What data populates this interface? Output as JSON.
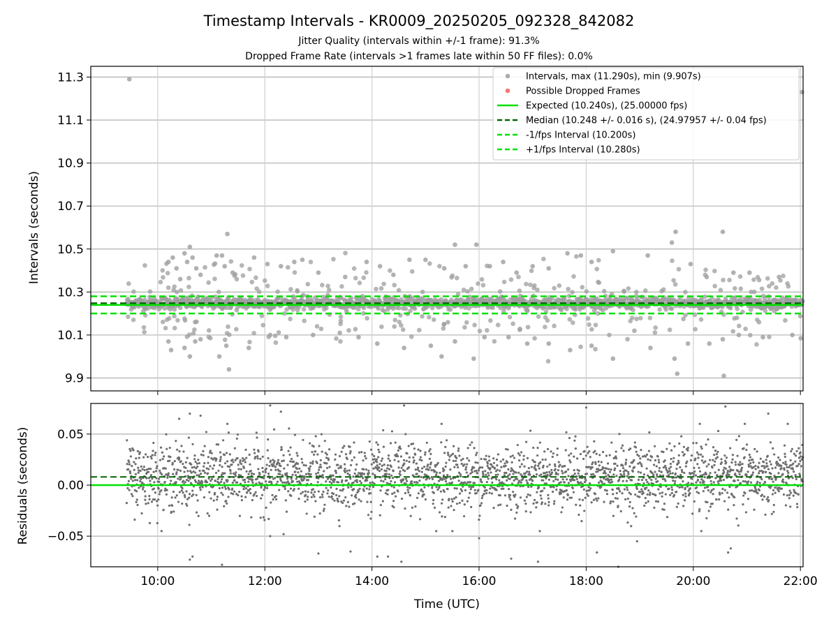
{
  "chart_data": [
    {
      "type": "scatter",
      "title": "Timestamp Intervals - KR0009_20250205_092328_842082",
      "subtitle_lines": [
        "Jitter Quality (intervals within +/-1 frame): 91.3%",
        "Dropped Frame Rate (intervals >1 frames late within 50 FF files): 0.0%"
      ],
      "ylabel": "Intervals (seconds)",
      "xlim_hours": [
        8.75,
        22.05
      ],
      "ylim": [
        9.84,
        11.35
      ],
      "y_ticks": [
        9.9,
        10.1,
        10.3,
        10.5,
        10.7,
        10.9,
        11.1,
        11.3
      ],
      "y_tick_labels": [
        "9.9",
        "10.1",
        "10.3",
        "10.5",
        "10.7",
        "10.9",
        "11.1",
        "11.3"
      ],
      "grid": true,
      "legend_position": "top-right",
      "legend": [
        {
          "label": "Intervals, max (11.290s), min (9.907s)",
          "kind": "marker",
          "color": "#9e9e9e"
        },
        {
          "label": "Possible Dropped Frames",
          "kind": "marker",
          "color": "#f06060"
        },
        {
          "label": "Expected (10.240s), (25.00000 fps)",
          "kind": "line",
          "color": "#00e000",
          "dash": "solid"
        },
        {
          "label": "Median (10.248 +/- 0.016 s), (24.97957 +/- 0.04 fps)",
          "kind": "line",
          "color": "#006400",
          "dash": "dashed"
        },
        {
          "label": "-1/fps Interval (10.200s)",
          "kind": "line",
          "color": "#00e000",
          "dash": "dashed"
        },
        {
          "label": "+1/fps Interval (10.280s)",
          "kind": "line",
          "color": "#00e000",
          "dash": "dashed"
        }
      ],
      "reference_lines": {
        "expected": 10.24,
        "median": 10.248,
        "minus_one_fps": 10.2,
        "plus_one_fps": 10.28
      },
      "series": [
        {
          "name": "Intervals, max (11.290s), min (9.907s)",
          "core_band": [
            10.2,
            10.29
          ],
          "x_range": [
            9.42,
            22.05
          ],
          "outliers": [
            [
              9.47,
              11.29
            ],
            [
              22.03,
              11.23
            ],
            [
              10.2,
              10.44
            ],
            [
              10.28,
              10.46
            ],
            [
              10.35,
              10.41
            ],
            [
              10.42,
              10.36
            ],
            [
              10.5,
              10.48
            ],
            [
              10.55,
              10.44
            ],
            [
              10.6,
              10.51
            ],
            [
              10.65,
              10.46
            ],
            [
              10.72,
              10.41
            ],
            [
              10.8,
              10.38
            ],
            [
              11.1,
              10.47
            ],
            [
              11.2,
              10.47
            ],
            [
              11.3,
              10.57
            ],
            [
              11.25,
              10.42
            ],
            [
              11.4,
              10.39
            ],
            [
              11.8,
              10.46
            ],
            [
              12.05,
              10.43
            ],
            [
              12.3,
              10.42
            ],
            [
              12.55,
              10.44
            ],
            [
              12.7,
              10.45
            ],
            [
              13.0,
              10.39
            ],
            [
              13.5,
              10.37
            ],
            [
              13.9,
              10.44
            ],
            [
              14.15,
              10.42
            ],
            [
              14.4,
              10.38
            ],
            [
              14.7,
              10.45
            ],
            [
              15.0,
              10.45
            ],
            [
              15.35,
              10.41
            ],
            [
              15.55,
              10.52
            ],
            [
              15.75,
              10.42
            ],
            [
              15.95,
              10.52
            ],
            [
              16.2,
              10.42
            ],
            [
              16.45,
              10.44
            ],
            [
              16.7,
              10.39
            ],
            [
              17.0,
              10.42
            ],
            [
              17.3,
              10.41
            ],
            [
              17.65,
              10.48
            ],
            [
              17.9,
              10.47
            ],
            [
              18.1,
              10.44
            ],
            [
              18.5,
              10.49
            ],
            [
              19.15,
              10.47
            ],
            [
              19.6,
              10.53
            ],
            [
              19.67,
              10.58
            ],
            [
              19.95,
              10.43
            ],
            [
              20.25,
              10.37
            ],
            [
              20.55,
              10.58
            ],
            [
              20.75,
              10.39
            ],
            [
              21.05,
              10.39
            ],
            [
              21.6,
              10.37
            ],
            [
              10.2,
              10.07
            ],
            [
              10.25,
              10.03
            ],
            [
              10.5,
              10.04
            ],
            [
              10.6,
              10.0
            ],
            [
              10.7,
              10.07
            ],
            [
              10.8,
              10.08
            ],
            [
              11.15,
              10.0
            ],
            [
              11.28,
              10.05
            ],
            [
              11.33,
              9.94
            ],
            [
              11.7,
              10.04
            ],
            [
              12.1,
              10.1
            ],
            [
              12.4,
              10.09
            ],
            [
              12.9,
              10.1
            ],
            [
              13.4,
              10.11
            ],
            [
              13.75,
              10.09
            ],
            [
              14.1,
              10.06
            ],
            [
              14.6,
              10.04
            ],
            [
              15.1,
              10.05
            ],
            [
              15.3,
              10.0
            ],
            [
              15.55,
              10.07
            ],
            [
              15.9,
              9.99
            ],
            [
              16.1,
              10.09
            ],
            [
              16.55,
              10.09
            ],
            [
              16.9,
              10.06
            ],
            [
              17.3,
              10.06
            ],
            [
              17.7,
              10.03
            ],
            [
              18.1,
              10.05
            ],
            [
              18.5,
              9.99
            ],
            [
              18.9,
              10.12
            ],
            [
              19.2,
              10.04
            ],
            [
              19.65,
              9.99
            ],
            [
              19.7,
              9.92
            ],
            [
              19.9,
              10.06
            ],
            [
              20.3,
              10.06
            ],
            [
              20.55,
              10.08
            ],
            [
              20.57,
              9.91
            ],
            [
              20.85,
              10.1
            ],
            [
              21.3,
              10.09
            ],
            [
              21.85,
              10.1
            ]
          ]
        }
      ],
      "x_ticks_hours": [
        10,
        12,
        14,
        16,
        18,
        20,
        22
      ]
    },
    {
      "type": "scatter",
      "ylabel": "Residuals (seconds)",
      "xlabel": "Time (UTC)",
      "xlim_hours": [
        8.75,
        22.05
      ],
      "ylim": [
        -0.08,
        0.08
      ],
      "y_ticks": [
        -0.05,
        0.0,
        0.05
      ],
      "y_tick_labels": [
        "−0.05",
        "0.00",
        "0.05"
      ],
      "x_ticks_hours": [
        10,
        12,
        14,
        16,
        18,
        20,
        22
      ],
      "x_tick_labels": [
        "10:00",
        "12:00",
        "14:00",
        "16:00",
        "18:00",
        "20:00",
        "22:00"
      ],
      "grid": true,
      "reference_lines": {
        "zero": 0.0,
        "median_offset": 0.008
      },
      "series": [
        {
          "color": "#6e6e6e",
          "x_range": [
            9.42,
            22.05
          ],
          "core_band": [
            -0.03,
            0.04
          ],
          "outliers": [
            [
              10.4,
              0.065
            ],
            [
              10.6,
              0.07
            ],
            [
              10.8,
              0.068
            ],
            [
              11.3,
              0.06
            ],
            [
              12.1,
              0.078
            ],
            [
              12.3,
              0.072
            ],
            [
              14.6,
              0.078
            ],
            [
              15.3,
              0.06
            ],
            [
              18.0,
              0.076
            ],
            [
              20.6,
              0.077
            ],
            [
              21.4,
              0.07
            ],
            [
              10.6,
              -0.073
            ],
            [
              10.65,
              -0.07
            ],
            [
              11.2,
              -0.078
            ],
            [
              12.1,
              -0.05
            ],
            [
              12.35,
              -0.048
            ],
            [
              13.0,
              -0.067
            ],
            [
              13.6,
              -0.065
            ],
            [
              14.1,
              -0.07
            ],
            [
              14.3,
              -0.07
            ],
            [
              14.55,
              -0.075
            ],
            [
              15.2,
              -0.045
            ],
            [
              16.0,
              -0.052
            ],
            [
              16.6,
              -0.072
            ],
            [
              17.1,
              -0.075
            ],
            [
              18.2,
              -0.066
            ],
            [
              18.6,
              -0.08
            ],
            [
              18.95,
              -0.055
            ],
            [
              20.15,
              -0.045
            ],
            [
              20.65,
              -0.066
            ],
            [
              20.7,
              -0.062
            ]
          ]
        }
      ]
    }
  ]
}
